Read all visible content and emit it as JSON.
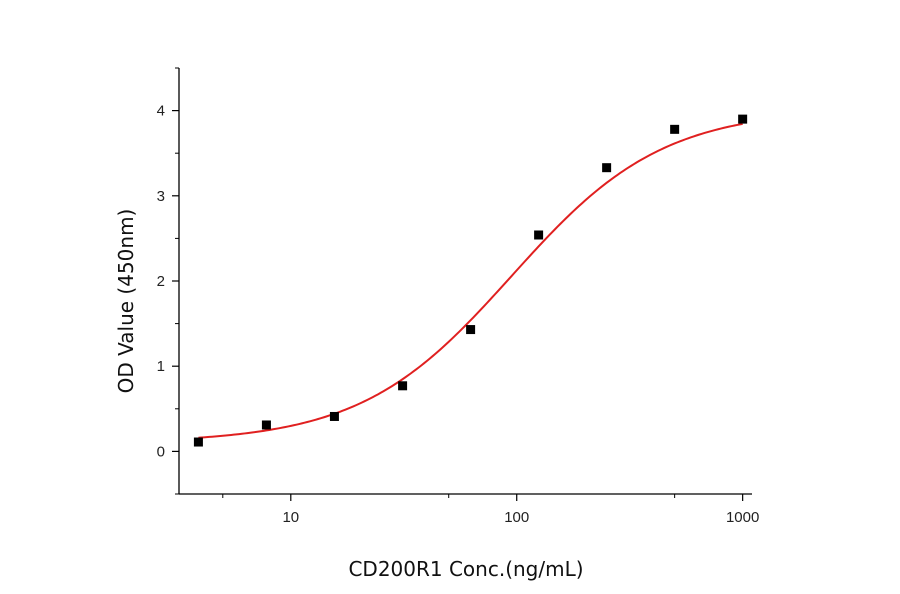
{
  "chart_data": {
    "type": "scatter",
    "title": "",
    "xlabel": "CD200R1 Conc.(ng/mL)",
    "ylabel": "OD Value (450nm)",
    "x_scale": "log",
    "xlim": [
      3.2,
      1100
    ],
    "ylim": [
      -0.5,
      4.5
    ],
    "x_ticks": [
      {
        "value": 10,
        "label": "10"
      },
      {
        "value": 100,
        "label": "100"
      },
      {
        "value": 1000,
        "label": "1000"
      }
    ],
    "y_ticks": [
      {
        "value": 0,
        "label": "0"
      },
      {
        "value": 1,
        "label": "1"
      },
      {
        "value": 2,
        "label": "2"
      },
      {
        "value": 3,
        "label": "3"
      },
      {
        "value": 4,
        "label": "4"
      }
    ],
    "grid": false,
    "legend": "none",
    "series": [
      {
        "marker": "square",
        "color": "#000000",
        "points": [
          {
            "x": 3.9,
            "y": 0.11
          },
          {
            "x": 7.8,
            "y": 0.31
          },
          {
            "x": 15.6,
            "y": 0.41
          },
          {
            "x": 31.25,
            "y": 0.77
          },
          {
            "x": 62.5,
            "y": 1.43
          },
          {
            "x": 125,
            "y": 2.54
          },
          {
            "x": 250,
            "y": 3.33
          },
          {
            "x": 500,
            "y": 3.78
          },
          {
            "x": 1000,
            "y": 3.9
          }
        ]
      }
    ],
    "fit_curve": {
      "model": "4PL",
      "color": "#e02020",
      "bottom": 0.1,
      "top": 4.02,
      "ec50": 95,
      "hill": 1.3,
      "x_range": [
        3.9,
        1000
      ]
    }
  }
}
